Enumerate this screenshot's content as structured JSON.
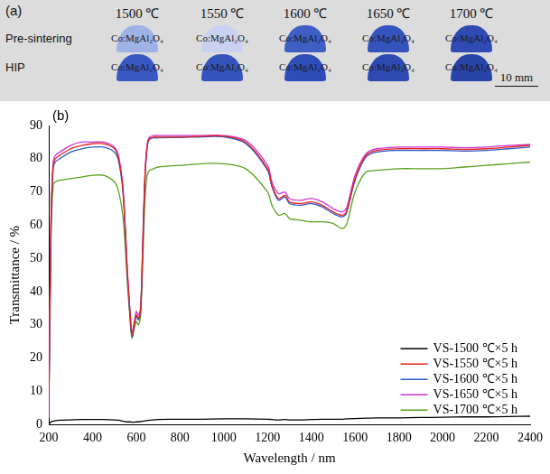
{
  "panel_a": {
    "label": "(a)",
    "columns": [
      "1500 ℃",
      "1550 ℃",
      "1600 ℃",
      "1650 ℃",
      "1700 ℃"
    ],
    "rows": [
      "Pre-sintering",
      "HIP"
    ],
    "sample_label": "Co:MgAl₂O₄",
    "scale_bar": "10 mm"
  },
  "chart_data": {
    "type": "line",
    "label": "(b)",
    "x_label": "Wavelength / nm",
    "y_label": "Transmittance / %",
    "x": [
      200,
      210,
      220,
      230,
      250,
      300,
      350,
      400,
      450,
      500,
      520,
      540,
      560,
      570,
      580,
      590,
      600,
      610,
      620,
      630,
      640,
      650,
      660,
      680,
      700,
      800,
      900,
      1000,
      1100,
      1200,
      1220,
      1250,
      1280,
      1300,
      1350,
      1400,
      1450,
      1500,
      1540,
      1560,
      1600,
      1650,
      1700,
      1800,
      1900,
      2000,
      2100,
      2200,
      2300,
      2400
    ],
    "series": [
      {
        "name": "VS-1500 ℃×5 h",
        "color": "#000000",
        "values": [
          0,
          0.8,
          1,
          1.2,
          1.3,
          1.4,
          1.5,
          1.5,
          1.5,
          1.4,
          1.3,
          1,
          0.8,
          0.8,
          0.7,
          0.7,
          0.8,
          0.8,
          0.9,
          1,
          1.1,
          1.2,
          1.3,
          1.4,
          1.5,
          1.6,
          1.6,
          1.7,
          1.7,
          1.6,
          1.5,
          1.4,
          1.5,
          1.4,
          1.4,
          1.5,
          1.6,
          1.6,
          1.6,
          1.7,
          1.8,
          1.9,
          2,
          2,
          2.1,
          2.2,
          2.3,
          2.3,
          2.4,
          2.5
        ]
      },
      {
        "name": "VS-1550 ℃×5 h",
        "color": "#e8211c",
        "values": [
          2,
          60,
          78,
          80,
          81,
          83,
          84,
          84.5,
          84.5,
          83,
          80,
          70,
          45,
          35,
          27,
          30,
          33,
          32,
          35,
          55,
          75,
          84,
          86,
          86.5,
          86.5,
          86.5,
          86.8,
          86.8,
          85,
          77,
          72,
          68,
          69,
          67,
          66.5,
          67,
          66,
          64,
          63,
          64,
          74,
          81,
          82.5,
          83,
          83,
          83,
          82.8,
          83,
          83.5,
          84
        ]
      },
      {
        "name": "VS-1600 ℃×5 h",
        "color": "#2a5cc8",
        "values": [
          2,
          58,
          77,
          79,
          80,
          82,
          83,
          83.5,
          83.5,
          82,
          79,
          69,
          44,
          34,
          26.5,
          29.5,
          32.5,
          31.5,
          34.5,
          54,
          74,
          83.5,
          85.8,
          86.3,
          86.3,
          86.4,
          86.6,
          86.6,
          84.6,
          76.5,
          71.5,
          67.5,
          68.5,
          66.5,
          66,
          66.5,
          65.5,
          63.5,
          62.5,
          63.5,
          73.5,
          80.5,
          82,
          82.5,
          82.5,
          82.5,
          82.3,
          82.5,
          83,
          83.5
        ]
      },
      {
        "name": "VS-1650 ℃×5 h",
        "color": "#cc33cc",
        "values": [
          2,
          61,
          79,
          81,
          82,
          84,
          85,
          85,
          85,
          83.5,
          80.5,
          70.5,
          45.5,
          35.5,
          27.5,
          30.5,
          34,
          33,
          35.5,
          56,
          76,
          84.5,
          86.5,
          87,
          87,
          87,
          87,
          87,
          85.5,
          78,
          73,
          69.5,
          70,
          68,
          67.5,
          68,
          67,
          65,
          64,
          65,
          75,
          81.5,
          83,
          83.5,
          83.5,
          83.5,
          83.3,
          83.5,
          84,
          84.3
        ]
      },
      {
        "name": "VS-1700 ℃×5 h",
        "color": "#5aa01e",
        "values": [
          2,
          55,
          72,
          73,
          73.5,
          74,
          74.5,
          75,
          75,
          73,
          70,
          62,
          42,
          33,
          26,
          28.5,
          31,
          30,
          33,
          50,
          68,
          75,
          76.5,
          77,
          77.5,
          78,
          78.5,
          78.5,
          77,
          70,
          66,
          63,
          63.5,
          62,
          61.5,
          61,
          61,
          60.5,
          59,
          60,
          70,
          76,
          76.5,
          77,
          77,
          77,
          77.5,
          78,
          78.5,
          79
        ]
      }
    ],
    "xlim": [
      200,
      2400
    ],
    "xticks": [
      200,
      400,
      600,
      800,
      1000,
      1200,
      1400,
      1600,
      1800,
      2000,
      2200,
      2400
    ],
    "ylim": [
      0,
      90
    ],
    "yticks": [
      0,
      10,
      20,
      30,
      40,
      50,
      60,
      70,
      80,
      90
    ],
    "grid": false,
    "legend": "lower right"
  }
}
